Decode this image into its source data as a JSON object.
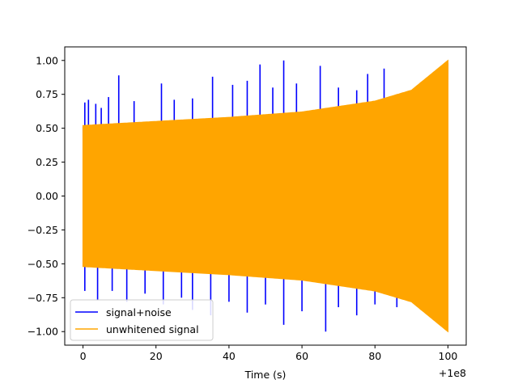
{
  "chart_data": {
    "type": "line",
    "title": "",
    "xlabel": "Time (s)",
    "ylabel": "",
    "x_offset_label": "+1e8",
    "xlim": [
      -5,
      105
    ],
    "ylim": [
      -1.1,
      1.1
    ],
    "x_ticks": [
      0,
      20,
      40,
      60,
      80,
      100
    ],
    "y_ticks": [
      -1.0,
      -0.75,
      -0.5,
      -0.25,
      0.0,
      0.25,
      0.5,
      0.75,
      1.0
    ],
    "x_tick_labels": [
      "0",
      "20",
      "40",
      "60",
      "80",
      "100"
    ],
    "y_tick_labels": [
      "−1.00",
      "−0.75",
      "−0.50",
      "−0.25",
      "0.00",
      "0.25",
      "0.50",
      "0.75",
      "1.00"
    ],
    "grid": false,
    "legend_position": "lower-left",
    "series": [
      {
        "name": "signal+noise",
        "color": "#0000ff",
        "x_range": [
          0,
          100
        ],
        "envelope_x": [
          0,
          20,
          40,
          60,
          80,
          90,
          100
        ],
        "envelope_y": [
          0.52,
          0.55,
          0.58,
          0.62,
          0.7,
          0.78,
          1.0
        ],
        "noise_peaks_upper": [
          {
            "x": 0.5,
            "y": 0.69
          },
          {
            "x": 1.5,
            "y": 0.71
          },
          {
            "x": 3.5,
            "y": 0.68
          },
          {
            "x": 5,
            "y": 0.65
          },
          {
            "x": 7,
            "y": 0.73
          },
          {
            "x": 9.8,
            "y": 0.89
          },
          {
            "x": 14,
            "y": 0.7
          },
          {
            "x": 21.5,
            "y": 0.83
          },
          {
            "x": 25,
            "y": 0.71
          },
          {
            "x": 30,
            "y": 0.72
          },
          {
            "x": 35.5,
            "y": 0.88
          },
          {
            "x": 41,
            "y": 0.82
          },
          {
            "x": 45,
            "y": 0.85
          },
          {
            "x": 48.5,
            "y": 0.97
          },
          {
            "x": 52,
            "y": 0.8
          },
          {
            "x": 55,
            "y": 1.0
          },
          {
            "x": 58.5,
            "y": 0.83
          },
          {
            "x": 65,
            "y": 0.96
          },
          {
            "x": 70,
            "y": 0.8
          },
          {
            "x": 75,
            "y": 0.78
          },
          {
            "x": 78,
            "y": 0.9
          },
          {
            "x": 82.5,
            "y": 0.94
          }
        ],
        "noise_peaks_lower": [
          {
            "x": 0.5,
            "y": -0.7
          },
          {
            "x": 4,
            "y": -0.77
          },
          {
            "x": 8,
            "y": -0.7
          },
          {
            "x": 12,
            "y": -0.78
          },
          {
            "x": 17,
            "y": -0.72
          },
          {
            "x": 22,
            "y": -0.8
          },
          {
            "x": 27,
            "y": -0.75
          },
          {
            "x": 30,
            "y": -0.84
          },
          {
            "x": 35,
            "y": -0.88
          },
          {
            "x": 40,
            "y": -0.78
          },
          {
            "x": 45,
            "y": -0.86
          },
          {
            "x": 50,
            "y": -0.8
          },
          {
            "x": 55,
            "y": -0.95
          },
          {
            "x": 60,
            "y": -0.85
          },
          {
            "x": 66.5,
            "y": -1.0
          },
          {
            "x": 70,
            "y": -0.82
          },
          {
            "x": 75,
            "y": -0.88
          },
          {
            "x": 80,
            "y": -0.8
          },
          {
            "x": 86,
            "y": -0.82
          },
          {
            "x": 93,
            "y": -0.8
          }
        ]
      },
      {
        "name": "unwhitened signal",
        "color": "#ffa500",
        "x_range": [
          0,
          100
        ],
        "envelope_x": [
          0,
          20,
          40,
          60,
          80,
          90,
          100
        ],
        "envelope_y": [
          0.52,
          0.55,
          0.58,
          0.62,
          0.7,
          0.78,
          1.0
        ]
      }
    ]
  }
}
